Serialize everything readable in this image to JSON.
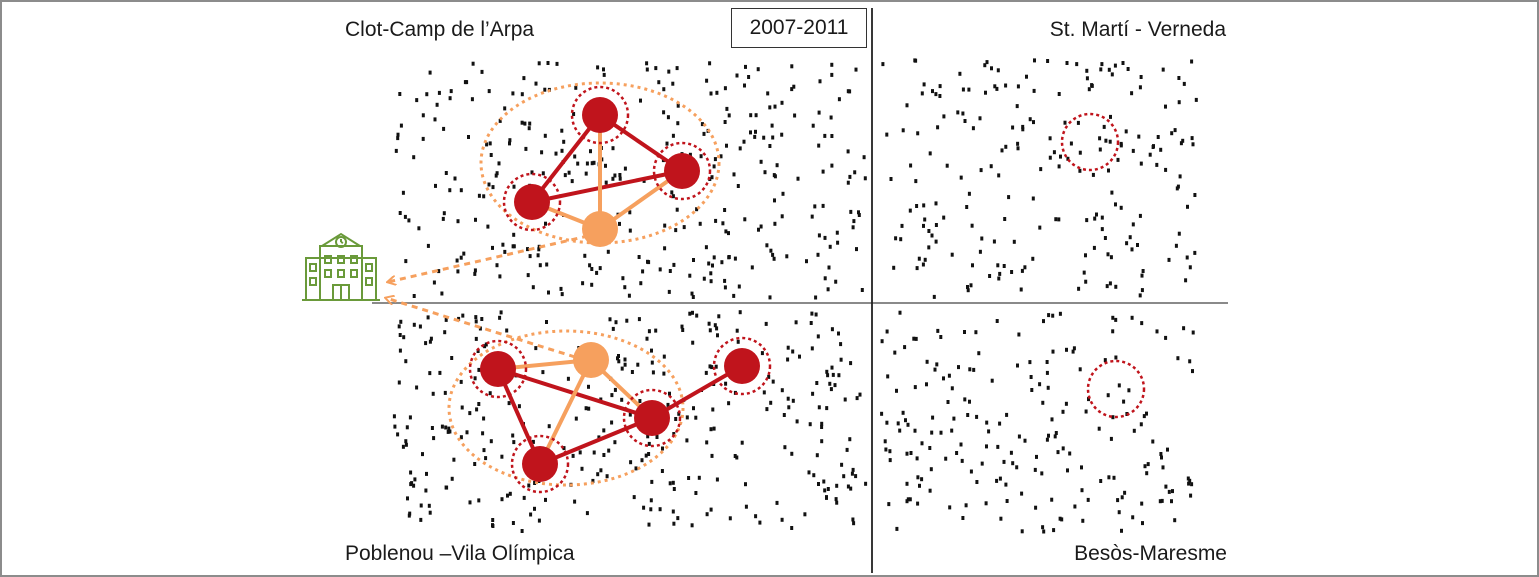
{
  "quadrants": {
    "top_left": "Clot-Camp de l’Arpa",
    "top_right": "St. Martí - Verneda",
    "bottom_left": "Poblenou –Vila Olímpica",
    "bottom_right": "Besòs-Maresme"
  },
  "period": "2007-2011",
  "icons": {
    "school": "school-building-icon"
  },
  "colors": {
    "red_node": "#c0141c",
    "orange_node": "#f6a05e",
    "red_dotted_circle": "#c0141c",
    "orange_dotted_ellipse": "#f6a05e",
    "school_green": "#6a9a3a",
    "dots": "#111111",
    "axis": "#8a8a8a"
  }
}
